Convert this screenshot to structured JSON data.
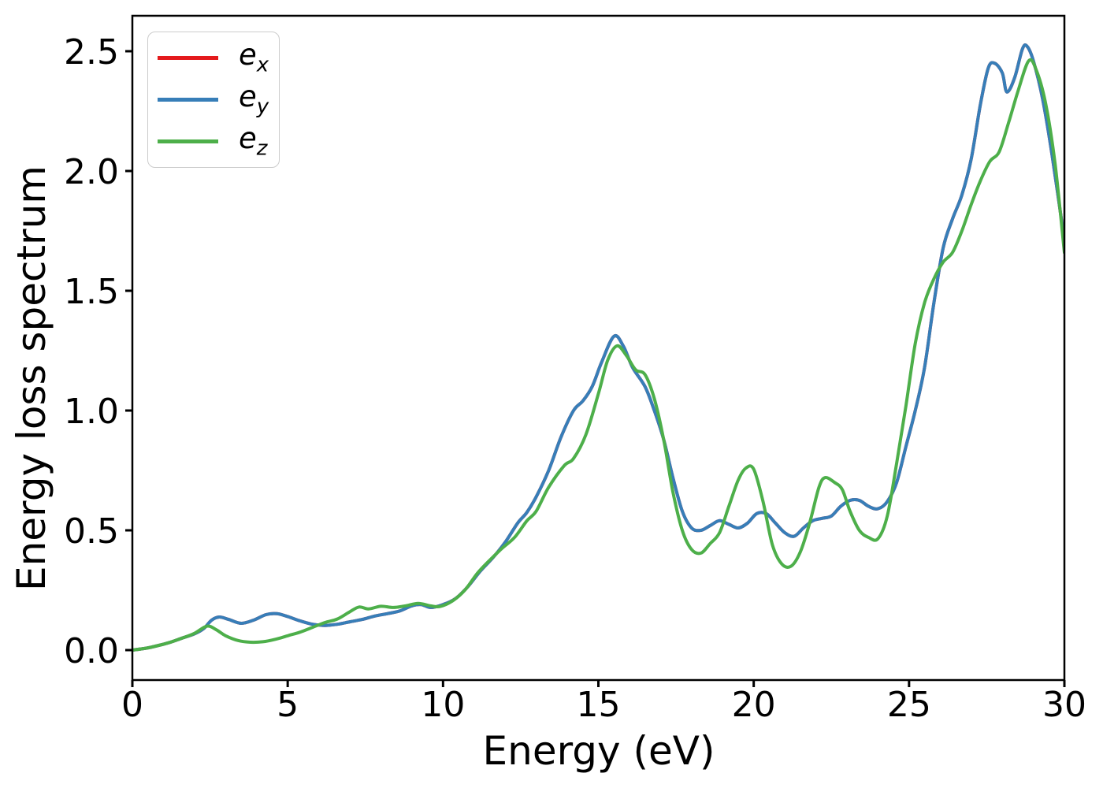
{
  "chart_data": {
    "type": "line",
    "title": "",
    "xlabel": "Energy (eV)",
    "ylabel": "Energy loss spectrum",
    "xlim": [
      0,
      30
    ],
    "ylim": [
      -0.125,
      2.648
    ],
    "grid": false,
    "x_ticks": [
      0,
      5,
      10,
      15,
      20,
      25,
      30
    ],
    "x_tick_labels": [
      "0",
      "5",
      "10",
      "15",
      "20",
      "25",
      "30"
    ],
    "y_ticks": [
      0.0,
      0.5,
      1.0,
      1.5,
      2.0,
      2.5
    ],
    "y_tick_labels": [
      "0.0",
      "0.5",
      "1.0",
      "1.5",
      "2.0",
      "2.5"
    ],
    "legend": {
      "position": "upper-left",
      "entries": [
        {
          "main": "e",
          "sub": "x"
        },
        {
          "main": "e",
          "sub": "y"
        },
        {
          "main": "e",
          "sub": "z"
        }
      ]
    },
    "series": [
      {
        "name": "e_x",
        "color": "#e41a1c",
        "points": [
          [
            0,
            0
          ],
          [
            0.4,
            0.007
          ],
          [
            0.8,
            0.018
          ],
          [
            1.2,
            0.032
          ],
          [
            1.6,
            0.05
          ],
          [
            2.0,
            0.068
          ],
          [
            2.3,
            0.09
          ],
          [
            2.55,
            0.125
          ],
          [
            2.8,
            0.138
          ],
          [
            3.1,
            0.128
          ],
          [
            3.5,
            0.112
          ],
          [
            3.9,
            0.125
          ],
          [
            4.3,
            0.148
          ],
          [
            4.65,
            0.152
          ],
          [
            5.0,
            0.14
          ],
          [
            5.4,
            0.122
          ],
          [
            5.8,
            0.108
          ],
          [
            6.2,
            0.103
          ],
          [
            6.6,
            0.108
          ],
          [
            7.0,
            0.118
          ],
          [
            7.4,
            0.128
          ],
          [
            7.8,
            0.142
          ],
          [
            8.2,
            0.152
          ],
          [
            8.6,
            0.163
          ],
          [
            9.0,
            0.185
          ],
          [
            9.3,
            0.19
          ],
          [
            9.6,
            0.178
          ],
          [
            10.0,
            0.19
          ],
          [
            10.4,
            0.215
          ],
          [
            10.8,
            0.265
          ],
          [
            11.2,
            0.33
          ],
          [
            11.6,
            0.385
          ],
          [
            12.0,
            0.45
          ],
          [
            12.4,
            0.53
          ],
          [
            12.7,
            0.575
          ],
          [
            13.0,
            0.64
          ],
          [
            13.4,
            0.75
          ],
          [
            13.8,
            0.89
          ],
          [
            14.2,
            1.0
          ],
          [
            14.5,
            1.04
          ],
          [
            14.8,
            1.1
          ],
          [
            15.1,
            1.2
          ],
          [
            15.5,
            1.31
          ],
          [
            15.8,
            1.27
          ],
          [
            16.1,
            1.18
          ],
          [
            16.5,
            1.1
          ],
          [
            16.8,
            1.0
          ],
          [
            17.1,
            0.88
          ],
          [
            17.4,
            0.72
          ],
          [
            17.7,
            0.58
          ],
          [
            18.0,
            0.51
          ],
          [
            18.3,
            0.5
          ],
          [
            18.6,
            0.52
          ],
          [
            18.9,
            0.54
          ],
          [
            19.2,
            0.525
          ],
          [
            19.5,
            0.51
          ],
          [
            19.8,
            0.53
          ],
          [
            20.1,
            0.57
          ],
          [
            20.4,
            0.57
          ],
          [
            20.7,
            0.53
          ],
          [
            21.0,
            0.49
          ],
          [
            21.3,
            0.475
          ],
          [
            21.6,
            0.51
          ],
          [
            21.9,
            0.54
          ],
          [
            22.2,
            0.55
          ],
          [
            22.5,
            0.56
          ],
          [
            22.8,
            0.6
          ],
          [
            23.1,
            0.625
          ],
          [
            23.4,
            0.625
          ],
          [
            23.7,
            0.6
          ],
          [
            24.0,
            0.59
          ],
          [
            24.3,
            0.62
          ],
          [
            24.6,
            0.7
          ],
          [
            24.9,
            0.85
          ],
          [
            25.2,
            1.0
          ],
          [
            25.5,
            1.18
          ],
          [
            25.8,
            1.45
          ],
          [
            26.1,
            1.68
          ],
          [
            26.4,
            1.8
          ],
          [
            26.7,
            1.9
          ],
          [
            27.0,
            2.05
          ],
          [
            27.3,
            2.28
          ],
          [
            27.55,
            2.43
          ],
          [
            27.75,
            2.45
          ],
          [
            28.0,
            2.41
          ],
          [
            28.15,
            2.33
          ],
          [
            28.4,
            2.39
          ],
          [
            28.65,
            2.51
          ],
          [
            28.8,
            2.52
          ],
          [
            29.0,
            2.46
          ],
          [
            29.3,
            2.3
          ],
          [
            29.6,
            2.07
          ],
          [
            30.0,
            1.71
          ]
        ]
      },
      {
        "name": "e_y",
        "color": "#377eb8",
        "points": [
          [
            0,
            0
          ],
          [
            0.4,
            0.007
          ],
          [
            0.8,
            0.018
          ],
          [
            1.2,
            0.032
          ],
          [
            1.6,
            0.05
          ],
          [
            2.0,
            0.068
          ],
          [
            2.3,
            0.09
          ],
          [
            2.55,
            0.125
          ],
          [
            2.8,
            0.138
          ],
          [
            3.1,
            0.128
          ],
          [
            3.5,
            0.112
          ],
          [
            3.9,
            0.125
          ],
          [
            4.3,
            0.148
          ],
          [
            4.65,
            0.152
          ],
          [
            5.0,
            0.14
          ],
          [
            5.4,
            0.122
          ],
          [
            5.8,
            0.108
          ],
          [
            6.2,
            0.103
          ],
          [
            6.6,
            0.108
          ],
          [
            7.0,
            0.118
          ],
          [
            7.4,
            0.128
          ],
          [
            7.8,
            0.142
          ],
          [
            8.2,
            0.152
          ],
          [
            8.6,
            0.163
          ],
          [
            9.0,
            0.185
          ],
          [
            9.3,
            0.19
          ],
          [
            9.6,
            0.178
          ],
          [
            10.0,
            0.19
          ],
          [
            10.4,
            0.215
          ],
          [
            10.8,
            0.265
          ],
          [
            11.2,
            0.33
          ],
          [
            11.6,
            0.385
          ],
          [
            12.0,
            0.45
          ],
          [
            12.4,
            0.53
          ],
          [
            12.7,
            0.575
          ],
          [
            13.0,
            0.64
          ],
          [
            13.4,
            0.75
          ],
          [
            13.8,
            0.89
          ],
          [
            14.2,
            1.0
          ],
          [
            14.5,
            1.04
          ],
          [
            14.8,
            1.1
          ],
          [
            15.1,
            1.2
          ],
          [
            15.5,
            1.31
          ],
          [
            15.8,
            1.27
          ],
          [
            16.1,
            1.18
          ],
          [
            16.5,
            1.1
          ],
          [
            16.8,
            1.0
          ],
          [
            17.1,
            0.88
          ],
          [
            17.4,
            0.72
          ],
          [
            17.7,
            0.58
          ],
          [
            18.0,
            0.51
          ],
          [
            18.3,
            0.5
          ],
          [
            18.6,
            0.52
          ],
          [
            18.9,
            0.54
          ],
          [
            19.2,
            0.525
          ],
          [
            19.5,
            0.51
          ],
          [
            19.8,
            0.53
          ],
          [
            20.1,
            0.57
          ],
          [
            20.4,
            0.57
          ],
          [
            20.7,
            0.53
          ],
          [
            21.0,
            0.49
          ],
          [
            21.3,
            0.475
          ],
          [
            21.6,
            0.51
          ],
          [
            21.9,
            0.54
          ],
          [
            22.2,
            0.55
          ],
          [
            22.5,
            0.56
          ],
          [
            22.8,
            0.6
          ],
          [
            23.1,
            0.625
          ],
          [
            23.4,
            0.625
          ],
          [
            23.7,
            0.6
          ],
          [
            24.0,
            0.59
          ],
          [
            24.3,
            0.62
          ],
          [
            24.6,
            0.7
          ],
          [
            24.9,
            0.85
          ],
          [
            25.2,
            1.0
          ],
          [
            25.5,
            1.18
          ],
          [
            25.8,
            1.45
          ],
          [
            26.1,
            1.68
          ],
          [
            26.4,
            1.8
          ],
          [
            26.7,
            1.9
          ],
          [
            27.0,
            2.05
          ],
          [
            27.3,
            2.28
          ],
          [
            27.55,
            2.43
          ],
          [
            27.75,
            2.45
          ],
          [
            28.0,
            2.41
          ],
          [
            28.15,
            2.33
          ],
          [
            28.4,
            2.39
          ],
          [
            28.65,
            2.51
          ],
          [
            28.8,
            2.52
          ],
          [
            29.0,
            2.46
          ],
          [
            29.3,
            2.3
          ],
          [
            29.6,
            2.07
          ],
          [
            30.0,
            1.71
          ]
        ]
      },
      {
        "name": "e_z",
        "color": "#4daf4a",
        "points": [
          [
            0,
            0
          ],
          [
            0.4,
            0.007
          ],
          [
            0.8,
            0.018
          ],
          [
            1.2,
            0.032
          ],
          [
            1.6,
            0.05
          ],
          [
            2.0,
            0.07
          ],
          [
            2.4,
            0.1
          ],
          [
            2.7,
            0.085
          ],
          [
            3.0,
            0.06
          ],
          [
            3.4,
            0.04
          ],
          [
            3.8,
            0.033
          ],
          [
            4.2,
            0.035
          ],
          [
            4.6,
            0.045
          ],
          [
            5.0,
            0.06
          ],
          [
            5.4,
            0.075
          ],
          [
            5.8,
            0.095
          ],
          [
            6.2,
            0.115
          ],
          [
            6.6,
            0.13
          ],
          [
            7.0,
            0.16
          ],
          [
            7.3,
            0.18
          ],
          [
            7.6,
            0.172
          ],
          [
            8.0,
            0.183
          ],
          [
            8.4,
            0.178
          ],
          [
            8.8,
            0.185
          ],
          [
            9.2,
            0.195
          ],
          [
            9.6,
            0.185
          ],
          [
            9.9,
            0.182
          ],
          [
            10.3,
            0.205
          ],
          [
            10.7,
            0.25
          ],
          [
            11.1,
            0.32
          ],
          [
            11.5,
            0.375
          ],
          [
            11.9,
            0.425
          ],
          [
            12.3,
            0.47
          ],
          [
            12.7,
            0.54
          ],
          [
            13.0,
            0.58
          ],
          [
            13.4,
            0.68
          ],
          [
            13.9,
            0.77
          ],
          [
            14.2,
            0.8
          ],
          [
            14.6,
            0.9
          ],
          [
            15.0,
            1.07
          ],
          [
            15.3,
            1.21
          ],
          [
            15.6,
            1.27
          ],
          [
            15.9,
            1.23
          ],
          [
            16.2,
            1.17
          ],
          [
            16.5,
            1.15
          ],
          [
            16.8,
            1.05
          ],
          [
            17.1,
            0.88
          ],
          [
            17.4,
            0.66
          ],
          [
            17.7,
            0.5
          ],
          [
            18.0,
            0.42
          ],
          [
            18.3,
            0.405
          ],
          [
            18.6,
            0.445
          ],
          [
            18.9,
            0.49
          ],
          [
            19.2,
            0.6
          ],
          [
            19.5,
            0.71
          ],
          [
            19.75,
            0.76
          ],
          [
            20.0,
            0.755
          ],
          [
            20.3,
            0.62
          ],
          [
            20.6,
            0.44
          ],
          [
            20.9,
            0.36
          ],
          [
            21.2,
            0.35
          ],
          [
            21.5,
            0.41
          ],
          [
            21.8,
            0.53
          ],
          [
            22.1,
            0.68
          ],
          [
            22.3,
            0.72
          ],
          [
            22.6,
            0.7
          ],
          [
            22.85,
            0.67
          ],
          [
            23.1,
            0.58
          ],
          [
            23.4,
            0.5
          ],
          [
            23.7,
            0.47
          ],
          [
            24.0,
            0.465
          ],
          [
            24.3,
            0.56
          ],
          [
            24.6,
            0.78
          ],
          [
            24.9,
            1.02
          ],
          [
            25.2,
            1.28
          ],
          [
            25.5,
            1.45
          ],
          [
            25.8,
            1.55
          ],
          [
            26.1,
            1.62
          ],
          [
            26.4,
            1.66
          ],
          [
            26.7,
            1.75
          ],
          [
            27.0,
            1.86
          ],
          [
            27.3,
            1.96
          ],
          [
            27.6,
            2.04
          ],
          [
            27.9,
            2.08
          ],
          [
            28.2,
            2.2
          ],
          [
            28.5,
            2.33
          ],
          [
            28.85,
            2.46
          ],
          [
            29.1,
            2.42
          ],
          [
            29.4,
            2.28
          ],
          [
            29.7,
            2.03
          ],
          [
            30.0,
            1.66
          ]
        ]
      }
    ]
  }
}
